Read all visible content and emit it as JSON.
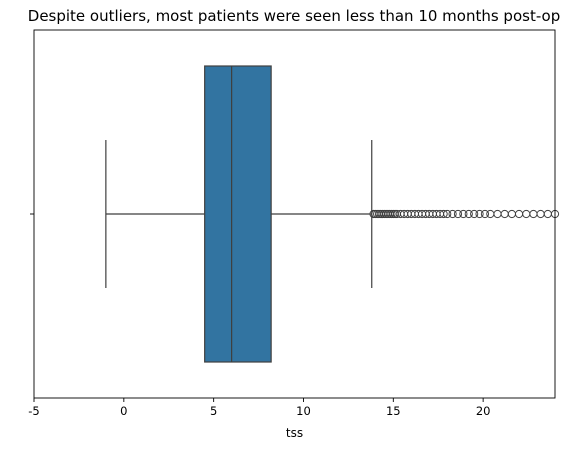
{
  "chart_data": {
    "type": "box",
    "title": "Despite outliers, most patients were seen less than 10 months post-op",
    "xlabel": "tss",
    "ylabel": "",
    "xlim": [
      -5,
      24
    ],
    "xticks": [
      -5,
      0,
      5,
      10,
      15,
      20
    ],
    "grid": false,
    "orientation": "horizontal",
    "box": {
      "whisker_low": -1,
      "q1": 4.5,
      "median": 6,
      "q3": 8.2,
      "whisker_high": 13.8
    },
    "outliers": [
      13.9,
      14.0,
      14.1,
      14.2,
      14.3,
      14.4,
      14.5,
      14.6,
      14.7,
      14.8,
      14.9,
      15.0,
      15.1,
      15.2,
      15.4,
      15.6,
      15.8,
      16.0,
      16.2,
      16.4,
      16.6,
      16.8,
      17.0,
      17.2,
      17.4,
      17.6,
      17.8,
      18.0,
      18.3,
      18.6,
      18.9,
      19.2,
      19.5,
      19.8,
      20.1,
      20.4,
      20.8,
      21.2,
      21.6,
      22.0,
      22.4,
      22.8,
      23.2,
      23.6,
      24.0
    ],
    "colors": {
      "box_fill": "#3274a1",
      "line": "#3f3f3f",
      "axis": "#000000"
    }
  }
}
